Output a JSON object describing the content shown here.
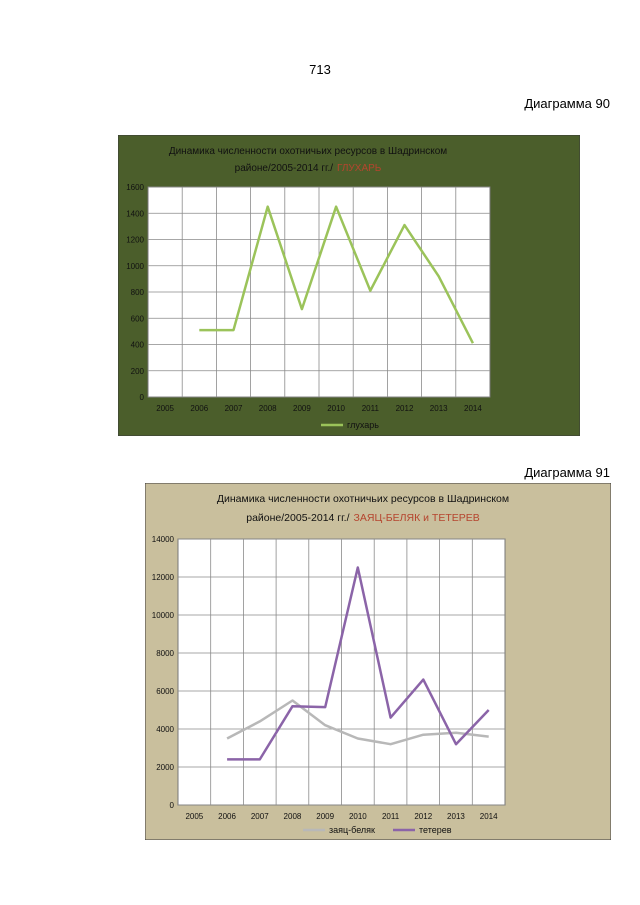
{
  "page_number": "713",
  "charts": {
    "c1": {
      "caption": "Диаграмма 90"
    },
    "c2": {
      "caption": "Диаграмма 91"
    }
  },
  "colors": {
    "chart1_bg": "#4b5e2b",
    "chart2_bg": "#c9bf9d",
    "plot_bg": "#ffffff",
    "grid": "#8a8a8a",
    "title_highlight": "#b5452e",
    "glukhar": "#9bc35a",
    "zayats": "#b8b8b8",
    "teterev": "#8b64a8"
  },
  "chart_data": [
    {
      "type": "line",
      "title_main": "Динамика численности охотничьих ресурсов  в Шадринском",
      "title_line2": "районе/2005-2014 гг./",
      "title_highlight": "ГЛУХАРЬ",
      "categories": [
        "2005",
        "2006",
        "2007",
        "2008",
        "2009",
        "2010",
        "2011",
        "2012",
        "2013",
        "2014"
      ],
      "ylim": [
        0,
        1600
      ],
      "yticks": [
        0,
        200,
        400,
        600,
        800,
        1000,
        1200,
        1400,
        1600
      ],
      "grid": true,
      "legend": "bottom",
      "series": [
        {
          "name": "глухарь",
          "values": [
            null,
            510,
            510,
            1450,
            670,
            1450,
            810,
            1310,
            920,
            410
          ]
        }
      ]
    },
    {
      "type": "line",
      "title_main": "Динамика численности охотничьих ресурсов  в Шадринском",
      "title_line2": "районе/2005-2014 гг./",
      "title_highlight": "ЗАЯЦ-БЕЛЯК и  ТЕТЕРЕВ",
      "categories": [
        "2005",
        "2006",
        "2007",
        "2008",
        "2009",
        "2010",
        "2011",
        "2012",
        "2013",
        "2014"
      ],
      "ylim": [
        0,
        14000
      ],
      "yticks": [
        0,
        2000,
        4000,
        6000,
        8000,
        10000,
        12000,
        14000
      ],
      "grid": true,
      "legend": "bottom",
      "series": [
        {
          "name": "заяц-беляк",
          "values": [
            null,
            3500,
            4400,
            5500,
            4200,
            3500,
            3200,
            3700,
            3800,
            3600
          ]
        },
        {
          "name": "тетерев",
          "values": [
            null,
            2400,
            2400,
            5200,
            5150,
            12500,
            4600,
            6600,
            3200,
            5000
          ]
        }
      ]
    }
  ]
}
